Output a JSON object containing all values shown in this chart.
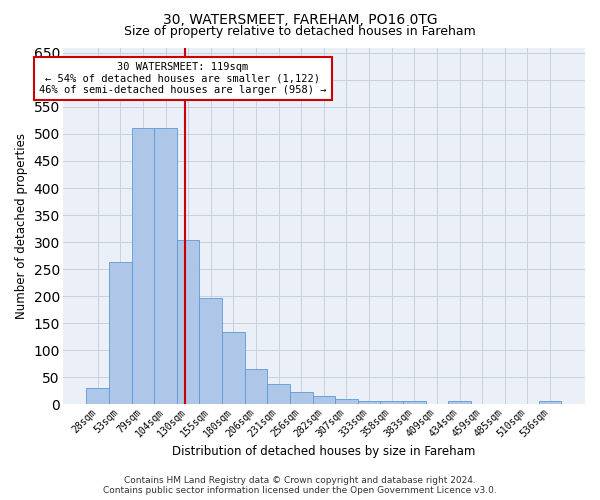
{
  "title": "30, WATERSMEET, FAREHAM, PO16 0TG",
  "subtitle": "Size of property relative to detached houses in Fareham",
  "xlabel": "Distribution of detached houses by size in Fareham",
  "ylabel": "Number of detached properties",
  "categories": [
    "28sqm",
    "53sqm",
    "79sqm",
    "104sqm",
    "130sqm",
    "155sqm",
    "180sqm",
    "206sqm",
    "231sqm",
    "256sqm",
    "282sqm",
    "307sqm",
    "333sqm",
    "358sqm",
    "383sqm",
    "409sqm",
    "434sqm",
    "459sqm",
    "485sqm",
    "510sqm",
    "536sqm"
  ],
  "values": [
    30,
    263,
    511,
    511,
    303,
    197,
    133,
    65,
    38,
    22,
    16,
    9,
    6,
    5,
    5,
    1,
    5,
    1,
    1,
    1,
    5
  ],
  "bar_color": "#aec6e8",
  "bar_edge_color": "#5b9bd5",
  "vline_color": "#cc0000",
  "annotation_text": "30 WATERSMEET: 119sqm\n← 54% of detached houses are smaller (1,122)\n46% of semi-detached houses are larger (958) →",
  "annotation_box_color": "#ffffff",
  "annotation_box_edge": "#cc0000",
  "ylim": [
    0,
    660
  ],
  "yticks": [
    0,
    50,
    100,
    150,
    200,
    250,
    300,
    350,
    400,
    450,
    500,
    550,
    600,
    650
  ],
  "grid_color": "#c8d0de",
  "background_color": "#eaeff8",
  "footer_line1": "Contains HM Land Registry data © Crown copyright and database right 2024.",
  "footer_line2": "Contains public sector information licensed under the Open Government Licence v3.0.",
  "title_fontsize": 10,
  "subtitle_fontsize": 9,
  "xlabel_fontsize": 8.5,
  "ylabel_fontsize": 8.5,
  "tick_fontsize": 7,
  "footer_fontsize": 6.5,
  "annotation_fontsize": 7.5,
  "vline_x_index": 3.85
}
